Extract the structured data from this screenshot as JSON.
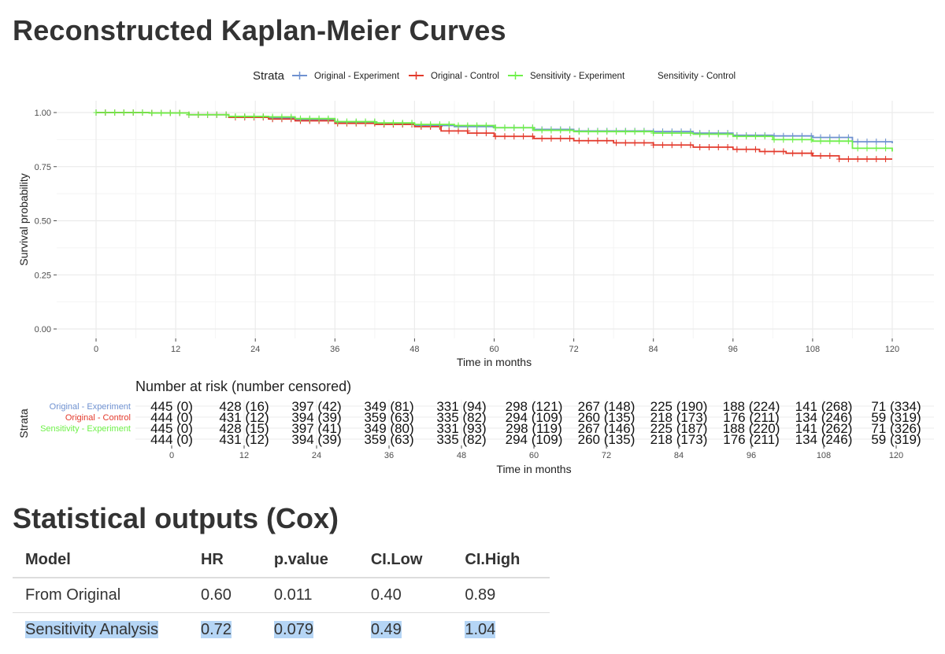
{
  "title": "Reconstructed Kaplan-Meier Curves",
  "stats_title": "Statistical outputs (Cox)",
  "colors": {
    "orig_exp": "#6f91d0",
    "orig_ctrl": "#e33a2c",
    "sens_exp": "#6ff04a",
    "sens_ctrl": "#b06bd6",
    "grid": "#ebebeb",
    "grid_minor": "#f4f4f4",
    "text": "#333333",
    "axis": "#4d4d4d",
    "selection": "#b5d5f5"
  },
  "chart_data": {
    "type": "line",
    "step": true,
    "title": "Reconstructed Kaplan-Meier Curves",
    "xlabel": "Time in months",
    "ylabel": "Survival probability",
    "xlim": [
      0,
      120
    ],
    "ylim": [
      0,
      1
    ],
    "xticks": [
      0,
      12,
      24,
      36,
      48,
      60,
      72,
      84,
      96,
      108,
      120
    ],
    "yticks": [
      0,
      0.25,
      0.5,
      0.75,
      1.0
    ],
    "ytick_labels": [
      "0.00",
      "0.25",
      "0.50",
      "0.75",
      "1.00"
    ],
    "legend_title": "Strata",
    "legend_position": "top",
    "grid": true,
    "series": [
      {
        "name": "Original - Experiment",
        "color_key": "orig_exp",
        "x": [
          0,
          8,
          14,
          20,
          26,
          30,
          36,
          42,
          48,
          54,
          60,
          66,
          72,
          78,
          84,
          90,
          96,
          102,
          108,
          114,
          120
        ],
        "y": [
          1.0,
          0.998,
          0.99,
          0.98,
          0.975,
          0.968,
          0.955,
          0.948,
          0.94,
          0.935,
          0.93,
          0.922,
          0.915,
          0.915,
          0.912,
          0.905,
          0.895,
          0.892,
          0.885,
          0.865,
          0.858
        ]
      },
      {
        "name": "Original - Control",
        "color_key": "orig_ctrl",
        "x": [
          0,
          8,
          14,
          20,
          26,
          30,
          36,
          42,
          48,
          52,
          56,
          60,
          66,
          72,
          78,
          84,
          90,
          96,
          100,
          104,
          108,
          112,
          120
        ],
        "y": [
          1.0,
          0.998,
          0.99,
          0.978,
          0.97,
          0.962,
          0.95,
          0.945,
          0.935,
          0.915,
          0.905,
          0.89,
          0.88,
          0.87,
          0.86,
          0.85,
          0.84,
          0.83,
          0.82,
          0.812,
          0.8,
          0.785,
          0.785
        ]
      },
      {
        "name": "Sensitivity - Experiment",
        "color_key": "sens_exp",
        "x": [
          0,
          8,
          14,
          20,
          26,
          30,
          36,
          42,
          48,
          54,
          60,
          66,
          72,
          78,
          84,
          90,
          96,
          102,
          108,
          114,
          120
        ],
        "y": [
          1.0,
          0.998,
          0.99,
          0.982,
          0.98,
          0.972,
          0.958,
          0.952,
          0.945,
          0.94,
          0.93,
          0.918,
          0.912,
          0.912,
          0.905,
          0.9,
          0.89,
          0.875,
          0.868,
          0.835,
          0.82
        ]
      },
      {
        "name": "Sensitivity - Control",
        "color_key": "sens_ctrl",
        "x": [],
        "y": []
      }
    ]
  },
  "risk_table": {
    "title": "Number at risk (number censored)",
    "ylabel": "Strata",
    "xlabel": "Time in months",
    "times": [
      0,
      12,
      24,
      36,
      48,
      60,
      72,
      84,
      96,
      108,
      120
    ],
    "rows": [
      {
        "name": "Original - Experiment",
        "color_key": "orig_exp",
        "cells": [
          "445 (0)",
          "428 (16)",
          "397 (42)",
          "349 (81)",
          "331 (94)",
          "298 (121)",
          "267 (148)",
          "225 (190)",
          "188 (224)",
          "141 (268)",
          "71 (334)"
        ]
      },
      {
        "name": "Original - Control",
        "color_key": "orig_ctrl",
        "cells": [
          "444 (0)",
          "431 (12)",
          "394 (39)",
          "359 (63)",
          "335 (82)",
          "294 (109)",
          "260 (135)",
          "218 (173)",
          "176 (211)",
          "134 (246)",
          "59 (319)"
        ]
      },
      {
        "name": "Sensitivity - Experiment",
        "color_key": "sens_exp",
        "cells": [
          "445 (0)",
          "428 (15)",
          "397 (41)",
          "349 (80)",
          "331 (93)",
          "298 (119)",
          "267 (146)",
          "225 (187)",
          "188 (220)",
          "141 (262)",
          "71 (326)"
        ]
      },
      {
        "name": "",
        "color_key": "sens_ctrl",
        "cells": [
          "444 (0)",
          "431 (12)",
          "394 (39)",
          "359 (63)",
          "335 (82)",
          "294 (109)",
          "260 (135)",
          "218 (173)",
          "176 (211)",
          "134 (246)",
          "59 (319)"
        ]
      }
    ]
  },
  "stats_table": {
    "headers": [
      "Model",
      "HR",
      "p.value",
      "CI.Low",
      "CI.High"
    ],
    "rows": [
      [
        "From Original",
        "0.60",
        "0.011",
        "0.40",
        "0.89"
      ],
      [
        "Sensitivity Analysis",
        "0.72",
        "0.079",
        "0.49",
        "1.04"
      ]
    ]
  }
}
